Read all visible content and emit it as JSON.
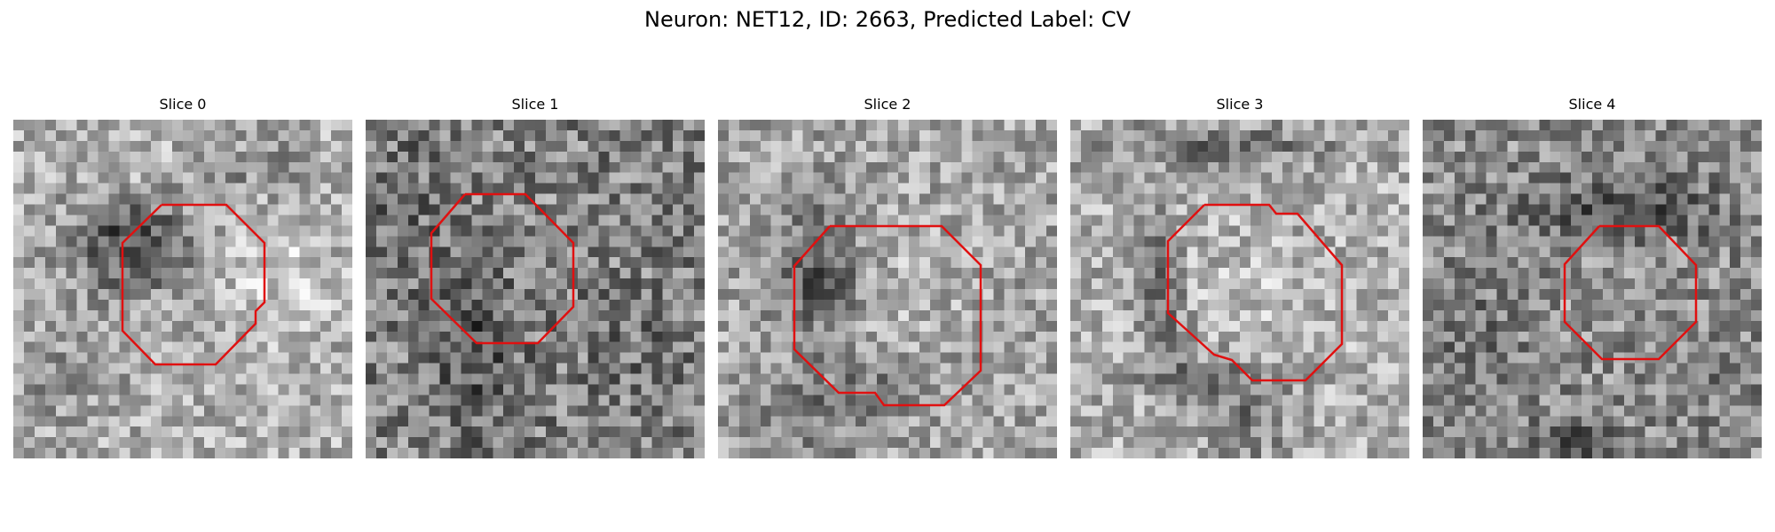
{
  "title": "Neuron: NET12, ID: 2663, Predicted Label: CV",
  "contour_color": "#e01010",
  "slices": [
    {
      "label": "Slice 0"
    },
    {
      "label": "Slice 1"
    },
    {
      "label": "Slice 2"
    },
    {
      "label": "Slice 3"
    },
    {
      "label": "Slice 4"
    }
  ]
}
